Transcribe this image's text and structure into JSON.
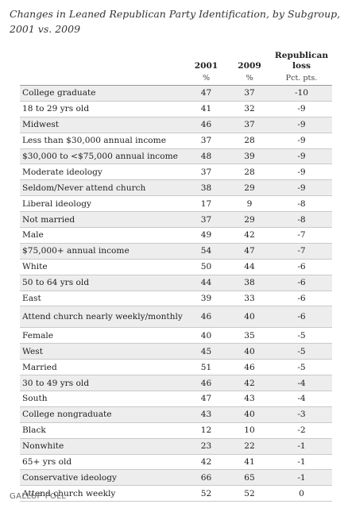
{
  "title": "Changes in Leaned Republican Party Identification, by Subgroup, 2001 vs. 2009",
  "footer": "GALLUP POLL",
  "chart_data": {
    "type": "table",
    "title": "Changes in Leaned Republican Party Identification, by Subgroup, 2001 vs. 2009",
    "columns": [
      {
        "label": "",
        "unit": ""
      },
      {
        "label": "2001",
        "unit": "%"
      },
      {
        "label": "2009",
        "unit": "%"
      },
      {
        "label": "Republican loss",
        "unit": "Pct. pts."
      }
    ],
    "rows": [
      {
        "label": "College graduate",
        "y2001": "47",
        "y2009": "37",
        "loss": "-10"
      },
      {
        "label": "18 to 29 yrs old",
        "y2001": "41",
        "y2009": "32",
        "loss": "-9"
      },
      {
        "label": "Midwest",
        "y2001": "46",
        "y2009": "37",
        "loss": "-9"
      },
      {
        "label": "Less than $30,000 annual income",
        "y2001": "37",
        "y2009": "28",
        "loss": "-9"
      },
      {
        "label": "$30,000 to <$75,000 annual income",
        "y2001": "48",
        "y2009": "39",
        "loss": "-9"
      },
      {
        "label": "Moderate ideology",
        "y2001": "37",
        "y2009": "28",
        "loss": "-9"
      },
      {
        "label": "Seldom/Never attend church",
        "y2001": "38",
        "y2009": "29",
        "loss": "-9"
      },
      {
        "label": "Liberal ideology",
        "y2001": "17",
        "y2009": "9",
        "loss": "-8"
      },
      {
        "label": "Not married",
        "y2001": "37",
        "y2009": "29",
        "loss": "-8"
      },
      {
        "label": "Male",
        "y2001": "49",
        "y2009": "42",
        "loss": "-7"
      },
      {
        "label": "$75,000+ annual income",
        "y2001": "54",
        "y2009": "47",
        "loss": "-7"
      },
      {
        "label": "White",
        "y2001": "50",
        "y2009": "44",
        "loss": "-6"
      },
      {
        "label": "50 to 64 yrs old",
        "y2001": "44",
        "y2009": "38",
        "loss": "-6"
      },
      {
        "label": "East",
        "y2001": "39",
        "y2009": "33",
        "loss": "-6"
      },
      {
        "label": "Attend church nearly weekly/monthly",
        "y2001": "46",
        "y2009": "40",
        "loss": "-6"
      },
      {
        "label": "Female",
        "y2001": "40",
        "y2009": "35",
        "loss": "-5"
      },
      {
        "label": "West",
        "y2001": "45",
        "y2009": "40",
        "loss": "-5"
      },
      {
        "label": "Married",
        "y2001": "51",
        "y2009": "46",
        "loss": "-5"
      },
      {
        "label": "30 to 49 yrs old",
        "y2001": "46",
        "y2009": "42",
        "loss": "-4"
      },
      {
        "label": "South",
        "y2001": "47",
        "y2009": "43",
        "loss": "-4"
      },
      {
        "label": "College nongraduate",
        "y2001": "43",
        "y2009": "40",
        "loss": "-3"
      },
      {
        "label": "Black",
        "y2001": "12",
        "y2009": "10",
        "loss": "-2"
      },
      {
        "label": "Nonwhite",
        "y2001": "23",
        "y2009": "22",
        "loss": "-1"
      },
      {
        "label": "65+ yrs old",
        "y2001": "42",
        "y2009": "41",
        "loss": "-1"
      },
      {
        "label": "Conservative ideology",
        "y2001": "66",
        "y2009": "65",
        "loss": "-1"
      },
      {
        "label": "Attend church weekly",
        "y2001": "52",
        "y2009": "52",
        "loss": "0"
      }
    ]
  }
}
